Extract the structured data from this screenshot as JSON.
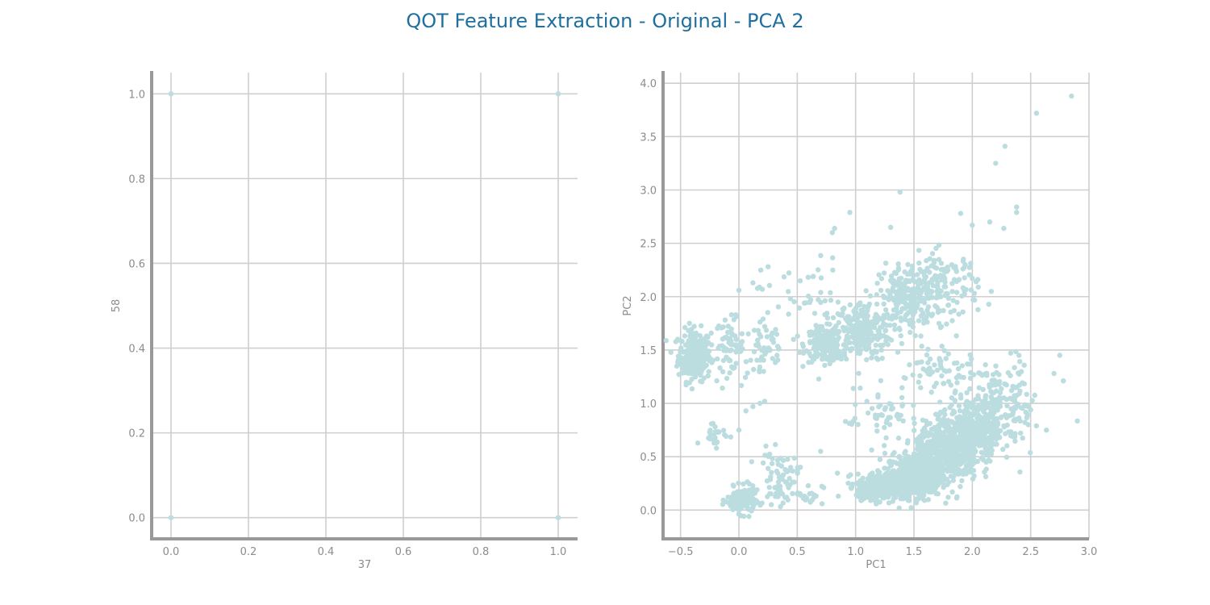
{
  "title": "QOT Feature Extraction - Original - PCA 2",
  "colors": {
    "title": "#1f6f9e",
    "point": "#bcdde0",
    "grid": "#cfcfcf",
    "spine": "#999999",
    "tick": "#8c8c8c"
  },
  "chart_data": [
    {
      "type": "scatter",
      "xlabel": "37",
      "ylabel": "58",
      "xlim": [
        -0.05,
        1.05
      ],
      "ylim": [
        -0.05,
        1.05
      ],
      "xticks": [
        0.0,
        0.2,
        0.4,
        0.6,
        0.8,
        1.0
      ],
      "yticks": [
        0.0,
        0.2,
        0.4,
        0.6,
        0.8,
        1.0
      ],
      "xtick_labels": [
        "0.0",
        "0.2",
        "0.4",
        "0.6",
        "0.8",
        "1.0"
      ],
      "ytick_labels": [
        "0.0",
        "0.2",
        "0.4",
        "0.6",
        "0.8",
        "1.0"
      ],
      "grid": true,
      "points": [
        [
          0,
          0
        ],
        [
          0,
          1
        ],
        [
          1,
          0
        ],
        [
          1,
          1
        ]
      ]
    },
    {
      "type": "scatter",
      "xlabel": "PC1",
      "ylabel": "PC2",
      "xlim": [
        -0.65,
        3.0
      ],
      "ylim": [
        -0.27,
        4.1
      ],
      "xticks": [
        -0.5,
        0.0,
        0.5,
        1.0,
        1.5,
        2.0,
        2.5,
        3.0
      ],
      "yticks": [
        0.0,
        0.5,
        1.0,
        1.5,
        2.0,
        2.5,
        3.0,
        3.5,
        4.0
      ],
      "xtick_labels": [
        "−0.5",
        "0.0",
        "0.5",
        "1.0",
        "1.5",
        "2.0",
        "2.5",
        "3.0"
      ],
      "ytick_labels": [
        "0.0",
        "0.5",
        "1.0",
        "1.5",
        "2.0",
        "2.5",
        "3.0",
        "3.5",
        "4.0"
      ],
      "grid": true,
      "clusters": [
        {
          "cx": -0.38,
          "cy": 1.45,
          "sx": 0.07,
          "sy": 0.12,
          "n": 260
        },
        {
          "cx": -0.08,
          "cy": 1.55,
          "sx": 0.06,
          "sy": 0.12,
          "n": 60
        },
        {
          "cx": 0.22,
          "cy": 1.5,
          "sx": 0.1,
          "sy": 0.18,
          "n": 55
        },
        {
          "cx": 0.73,
          "cy": 1.55,
          "sx": 0.08,
          "sy": 0.08,
          "n": 200
        },
        {
          "cx": 1.05,
          "cy": 1.68,
          "sx": 0.12,
          "sy": 0.14,
          "n": 240
        },
        {
          "cx": 0.55,
          "cy": 2.0,
          "sx": 0.18,
          "sy": 0.18,
          "n": 40
        },
        {
          "cx": 1.45,
          "cy": 2.0,
          "sx": 0.12,
          "sy": 0.14,
          "n": 200
        },
        {
          "cx": 1.75,
          "cy": 2.1,
          "sx": 0.15,
          "sy": 0.16,
          "n": 140
        },
        {
          "cx": 0.02,
          "cy": 0.09,
          "sx": 0.06,
          "sy": 0.06,
          "n": 170
        },
        {
          "cx": 0.35,
          "cy": 0.3,
          "sx": 0.08,
          "sy": 0.12,
          "n": 70
        },
        {
          "cx": 0.6,
          "cy": 0.15,
          "sx": 0.06,
          "sy": 0.05,
          "n": 20
        },
        {
          "cx": -0.2,
          "cy": 0.72,
          "sx": 0.06,
          "sy": 0.06,
          "n": 25
        },
        {
          "cx": 1.25,
          "cy": 0.22,
          "sx": 0.12,
          "sy": 0.06,
          "n": 420
        },
        {
          "cx": 1.5,
          "cy": 0.32,
          "sx": 0.12,
          "sy": 0.1,
          "n": 440
        },
        {
          "cx": 1.78,
          "cy": 0.55,
          "sx": 0.14,
          "sy": 0.14,
          "n": 560
        },
        {
          "cx": 2.05,
          "cy": 0.78,
          "sx": 0.14,
          "sy": 0.14,
          "n": 360
        },
        {
          "cx": 2.3,
          "cy": 0.98,
          "sx": 0.14,
          "sy": 0.16,
          "n": 90
        },
        {
          "cx": 1.2,
          "cy": 0.9,
          "sx": 0.15,
          "sy": 0.12,
          "n": 50
        },
        {
          "cx": 1.7,
          "cy": 1.3,
          "sx": 0.15,
          "sy": 0.15,
          "n": 60
        },
        {
          "cx": 2.1,
          "cy": 1.2,
          "sx": 0.18,
          "sy": 0.15,
          "n": 40
        }
      ],
      "outliers": [
        [
          2.85,
          3.88
        ],
        [
          2.55,
          3.72
        ],
        [
          2.28,
          3.41
        ],
        [
          2.2,
          3.25
        ],
        [
          1.38,
          2.98
        ],
        [
          2.38,
          2.84
        ],
        [
          2.38,
          2.79
        ],
        [
          0.95,
          2.79
        ],
        [
          2.27,
          2.64
        ],
        [
          1.3,
          2.65
        ],
        [
          0.8,
          2.6
        ],
        [
          0.82,
          2.64
        ],
        [
          2.15,
          2.7
        ],
        [
          1.9,
          2.78
        ],
        [
          2.0,
          2.67
        ],
        [
          2.75,
          1.45
        ],
        [
          2.78,
          1.21
        ],
        [
          2.7,
          1.28
        ],
        [
          2.4,
          1.45
        ],
        [
          0.25,
          2.28
        ],
        [
          0.0,
          2.06
        ],
        [
          0.12,
          2.13
        ],
        [
          0.18,
          1.0
        ],
        [
          0.12,
          0.97
        ],
        [
          0.06,
          0.93
        ],
        [
          0.0,
          0.75
        ],
        [
          0.7,
          0.55
        ],
        [
          0.22,
          1.02
        ],
        [
          0.98,
          1.14
        ],
        [
          0.9,
          1.47
        ]
      ]
    }
  ]
}
